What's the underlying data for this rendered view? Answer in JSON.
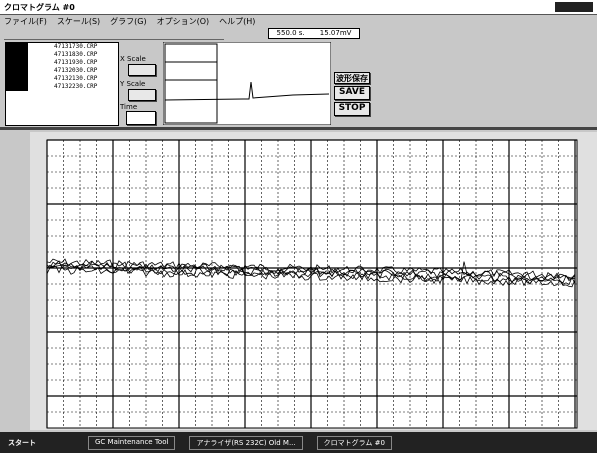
{
  "window": {
    "title": "クロマトグラム #0"
  },
  "menu": [
    "ファイル(F)",
    "スケール(S)",
    "グラフ(G)",
    "オプション(O)",
    "ヘルプ(H)"
  ],
  "files": [
    "47131730.CRP",
    "47131830.CRP",
    "47131930.CRP",
    "47132030.CRP",
    "47132130.CRP",
    "47132230.CRP"
  ],
  "status": {
    "time": "550.0 s.",
    "signal": "15.07mV"
  },
  "controls": {
    "x_scale": "X Scale",
    "y_scale": "Y Scale",
    "time": "Time"
  },
  "buttons": {
    "save_wave": "波形保存",
    "save": "SAVE",
    "stop": "STOP"
  },
  "taskbar": {
    "start": "スタート",
    "items": [
      "GC Maintenance Tool",
      "アナライザ(RS 232C) Old M...",
      "クロマトグラム #0"
    ]
  }
}
